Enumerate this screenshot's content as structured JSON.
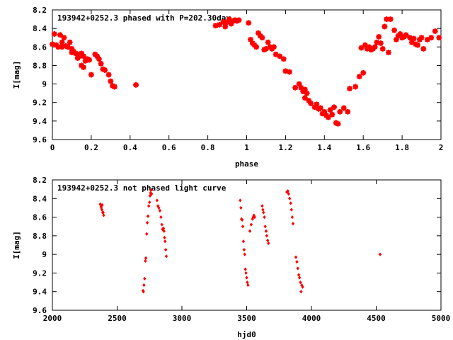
{
  "chart_data": [
    {
      "type": "scatter",
      "title": "193942+0252.3 phased with P=202.30day",
      "xlabel": "phase",
      "ylabel": "I[mag]",
      "xlim": [
        0,
        2
      ],
      "ylim": [
        9.6,
        8.2
      ],
      "y_inverted": true,
      "xticks": [
        "0",
        "0.2",
        "0.4",
        "0.6",
        "0.8",
        "1",
        "1.2",
        "1.4",
        "1.6",
        "1.8",
        "2"
      ],
      "yticks": [
        "8.2",
        "8.4",
        "8.6",
        "8.8",
        "9",
        "9.2",
        "9.4",
        "9.6"
      ],
      "marker": "star",
      "color": "#ff0000",
      "series": [
        {
          "points": [
            [
              0.0,
              8.57
            ],
            [
              0.01,
              8.46
            ],
            [
              0.02,
              8.58
            ],
            [
              0.03,
              8.6
            ],
            [
              0.04,
              8.47
            ],
            [
              0.05,
              8.6
            ],
            [
              0.05,
              8.55
            ],
            [
              0.06,
              8.5
            ],
            [
              0.07,
              8.59
            ],
            [
              0.08,
              8.6
            ],
            [
              0.09,
              8.55
            ],
            [
              0.1,
              8.62
            ],
            [
              0.1,
              8.66
            ],
            [
              0.11,
              8.65
            ],
            [
              0.12,
              8.67
            ],
            [
              0.13,
              8.72
            ],
            [
              0.13,
              8.68
            ],
            [
              0.14,
              8.7
            ],
            [
              0.15,
              8.67
            ],
            [
              0.16,
              8.7
            ],
            [
              0.15,
              8.8
            ],
            [
              0.16,
              8.82
            ],
            [
              0.17,
              8.75
            ],
            [
              0.18,
              8.73
            ],
            [
              0.19,
              8.74
            ],
            [
              0.2,
              8.9
            ],
            [
              0.22,
              8.68
            ],
            [
              0.23,
              8.7
            ],
            [
              0.24,
              8.73
            ],
            [
              0.25,
              8.78
            ],
            [
              0.26,
              8.84
            ],
            [
              0.27,
              8.85
            ],
            [
              0.29,
              8.9
            ],
            [
              0.3,
              8.97
            ],
            [
              0.31,
              9.02
            ],
            [
              0.32,
              9.03
            ],
            [
              0.43,
              9.01
            ],
            [
              0.84,
              8.37
            ],
            [
              0.86,
              8.36
            ],
            [
              0.88,
              8.33
            ],
            [
              0.89,
              8.38
            ],
            [
              0.9,
              8.33
            ],
            [
              0.91,
              8.3
            ],
            [
              0.92,
              8.35
            ],
            [
              0.93,
              8.32
            ],
            [
              0.94,
              8.31
            ],
            [
              0.95,
              8.32
            ],
            [
              0.96,
              8.31
            ],
            [
              1.01,
              8.34
            ],
            [
              1.02,
              8.52
            ],
            [
              1.03,
              8.56
            ],
            [
              1.04,
              8.58
            ],
            [
              1.05,
              8.6
            ],
            [
              1.06,
              8.45
            ],
            [
              1.07,
              8.48
            ],
            [
              1.08,
              8.5
            ],
            [
              1.09,
              8.63
            ],
            [
              1.1,
              8.62
            ],
            [
              1.11,
              8.55
            ],
            [
              1.12,
              8.6
            ],
            [
              1.13,
              8.62
            ],
            [
              1.14,
              8.6
            ],
            [
              1.15,
              8.68
            ],
            [
              1.17,
              8.7
            ],
            [
              1.19,
              8.73
            ],
            [
              1.2,
              8.86
            ],
            [
              1.22,
              8.87
            ],
            [
              1.25,
              9.04
            ],
            [
              1.27,
              9.0
            ],
            [
              1.28,
              9.04
            ],
            [
              1.29,
              9.08
            ],
            [
              1.3,
              9.06
            ],
            [
              1.31,
              9.1
            ],
            [
              1.3,
              9.15
            ],
            [
              1.32,
              9.18
            ],
            [
              1.33,
              9.21
            ],
            [
              1.35,
              9.25
            ],
            [
              1.36,
              9.22
            ],
            [
              1.37,
              9.27
            ],
            [
              1.38,
              9.26
            ],
            [
              1.39,
              9.32
            ],
            [
              1.4,
              9.3
            ],
            [
              1.41,
              9.34
            ],
            [
              1.42,
              9.36
            ],
            [
              1.43,
              9.28
            ],
            [
              1.44,
              9.33
            ],
            [
              1.45,
              9.25
            ],
            [
              1.46,
              9.42
            ],
            [
              1.47,
              9.43
            ],
            [
              1.48,
              9.3
            ],
            [
              1.5,
              9.26
            ],
            [
              1.52,
              9.3
            ],
            [
              1.53,
              9.05
            ],
            [
              1.56,
              9.03
            ],
            [
              1.58,
              8.92
            ],
            [
              1.6,
              8.88
            ],
            [
              1.59,
              8.61
            ],
            [
              1.61,
              8.58
            ],
            [
              1.62,
              8.62
            ],
            [
              1.63,
              8.6
            ],
            [
              1.64,
              8.63
            ],
            [
              1.65,
              8.62
            ],
            [
              1.66,
              8.6
            ],
            [
              1.67,
              8.55
            ],
            [
              1.68,
              8.49
            ],
            [
              1.69,
              8.56
            ],
            [
              1.7,
              8.62
            ],
            [
              1.71,
              8.38
            ],
            [
              1.72,
              8.3
            ],
            [
              1.73,
              8.66
            ],
            [
              1.74,
              8.3
            ],
            [
              1.76,
              8.42
            ],
            [
              1.77,
              8.52
            ],
            [
              1.78,
              8.48
            ],
            [
              1.79,
              8.46
            ],
            [
              1.8,
              8.5
            ],
            [
              1.81,
              8.49
            ],
            [
              1.82,
              8.47
            ],
            [
              1.84,
              8.5
            ],
            [
              1.85,
              8.55
            ],
            [
              1.86,
              8.51
            ],
            [
              1.87,
              8.57
            ],
            [
              1.88,
              8.58
            ],
            [
              1.89,
              8.52
            ],
            [
              1.9,
              8.5
            ],
            [
              1.91,
              8.62
            ],
            [
              1.93,
              8.52
            ],
            [
              1.95,
              8.5
            ],
            [
              1.97,
              8.43
            ],
            [
              1.99,
              8.5
            ]
          ]
        }
      ]
    },
    {
      "type": "scatter",
      "title": "193942+0252.3 not phased light curve",
      "xlabel": "hjd0",
      "ylabel": "I[mag]",
      "xlim": [
        2000,
        5000
      ],
      "ylim": [
        9.6,
        8.2
      ],
      "y_inverted": true,
      "xticks": [
        "2000",
        "2500",
        "3000",
        "3500",
        "4000",
        "4500",
        "5000"
      ],
      "yticks": [
        "8.2",
        "8.4",
        "8.6",
        "8.8",
        "9",
        "9.2",
        "9.4",
        "9.6"
      ],
      "marker": "diamond",
      "color": "#ff0000",
      "series": [
        {
          "points": [
            [
              2370,
              8.46
            ],
            [
              2375,
              8.48
            ],
            [
              2378,
              8.5
            ],
            [
              2382,
              8.52
            ],
            [
              2385,
              8.47
            ],
            [
              2388,
              8.55
            ],
            [
              2392,
              8.55
            ],
            [
              2396,
              8.58
            ],
            [
              2700,
              9.39
            ],
            [
              2703,
              9.4
            ],
            [
              2707,
              9.33
            ],
            [
              2712,
              9.26
            ],
            [
              2718,
              9.07
            ],
            [
              2722,
              9.04
            ],
            [
              2728,
              8.78
            ],
            [
              2733,
              8.66
            ],
            [
              2738,
              8.59
            ],
            [
              2744,
              8.48
            ],
            [
              2750,
              8.44
            ],
            [
              2754,
              8.37
            ],
            [
              2758,
              8.34
            ],
            [
              2762,
              8.31
            ],
            [
              2766,
              8.35
            ],
            [
              2808,
              8.42
            ],
            [
              2815,
              8.48
            ],
            [
              2822,
              8.5
            ],
            [
              2830,
              8.53
            ],
            [
              2838,
              8.6
            ],
            [
              2845,
              8.68
            ],
            [
              2850,
              8.73
            ],
            [
              2858,
              8.72
            ],
            [
              2862,
              8.75
            ],
            [
              2866,
              8.82
            ],
            [
              2870,
              8.86
            ],
            [
              2875,
              8.95
            ],
            [
              2880,
              9.02
            ],
            [
              3450,
              8.42
            ],
            [
              3455,
              8.5
            ],
            [
              3460,
              8.62
            ],
            [
              3465,
              8.63
            ],
            [
              3470,
              8.7
            ],
            [
              3475,
              8.86
            ],
            [
              3480,
              8.95
            ],
            [
              3485,
              9.0
            ],
            [
              3490,
              9.16
            ],
            [
              3495,
              9.2
            ],
            [
              3500,
              9.25
            ],
            [
              3505,
              9.3
            ],
            [
              3510,
              9.33
            ],
            [
              3525,
              8.75
            ],
            [
              3535,
              8.68
            ],
            [
              3545,
              8.62
            ],
            [
              3550,
              8.6
            ],
            [
              3556,
              8.58
            ],
            [
              3562,
              8.6
            ],
            [
              3620,
              8.48
            ],
            [
              3625,
              8.52
            ],
            [
              3630,
              8.55
            ],
            [
              3637,
              8.6
            ],
            [
              3643,
              8.7
            ],
            [
              3650,
              8.75
            ],
            [
              3655,
              8.8
            ],
            [
              3662,
              8.85
            ],
            [
              3668,
              8.88
            ],
            [
              3810,
              8.33
            ],
            [
              3818,
              8.32
            ],
            [
              3824,
              8.35
            ],
            [
              3832,
              8.4
            ],
            [
              3840,
              8.45
            ],
            [
              3846,
              8.52
            ],
            [
              3852,
              8.6
            ],
            [
              3858,
              8.67
            ],
            [
              3880,
              9.03
            ],
            [
              3888,
              9.08
            ],
            [
              3895,
              9.15
            ],
            [
              3902,
              9.22
            ],
            [
              3908,
              9.25
            ],
            [
              3915,
              9.3
            ],
            [
              3920,
              9.4
            ],
            [
              3925,
              9.33
            ],
            [
              3932,
              9.35
            ],
            [
              4530,
              9.0
            ]
          ]
        }
      ]
    }
  ]
}
